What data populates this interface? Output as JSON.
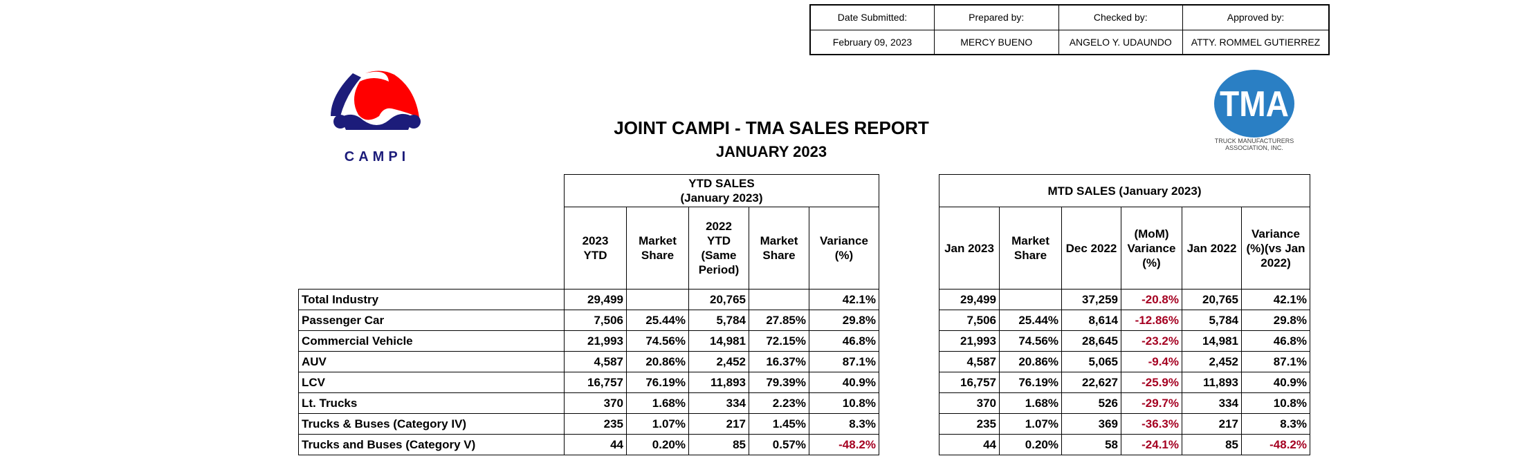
{
  "signoff": {
    "labels": [
      "Date Submitted:",
      "Prepared by:",
      "Checked by:",
      "Approved by:"
    ],
    "values": [
      "February 09, 2023",
      "MERCY BUENO",
      "ANGELO Y. UDAUNDO",
      "ATTY. ROMMEL GUTIERREZ"
    ]
  },
  "logos": {
    "campi": "CAMPI",
    "tma": "TMA",
    "tma_sub_1": "TRUCK MANUFACTURERS",
    "tma_sub_2": "ASSOCIATION, INC."
  },
  "title": "JOINT CAMPI - TMA SALES REPORT",
  "subtitle": "JANUARY 2023",
  "colors": {
    "negative": "#a50021",
    "campi_blue": "#1c1c7a",
    "campi_red": "#ff0000",
    "tma_blue": "#2a7fc4"
  },
  "ytd": {
    "group_title_1": "YTD SALES",
    "group_title_2": "(January 2023)",
    "headers": [
      [
        "2023",
        "YTD"
      ],
      [
        "Market",
        "Share"
      ],
      [
        "2022",
        "YTD",
        "(Same",
        "Period)"
      ],
      [
        "Market",
        "Share"
      ],
      [
        "Variance",
        "(%)"
      ]
    ]
  },
  "mtd": {
    "group_title": "MTD SALES (January 2023)",
    "headers": [
      [
        "Jan 2023"
      ],
      [
        "Market",
        "Share"
      ],
      [
        "Dec 2022"
      ],
      [
        "(MoM)",
        "Variance",
        "(%)"
      ],
      [
        "Jan 2022"
      ],
      [
        "Variance",
        "(%)(vs Jan",
        "2022)"
      ]
    ]
  },
  "rows": [
    {
      "label": "Total Industry",
      "ytd": [
        "29,499",
        "",
        "20,765",
        "",
        "42.1%"
      ],
      "mtd": [
        "29,499",
        "",
        "37,259",
        "-20.8%",
        "20,765",
        "42.1%"
      ]
    },
    {
      "label": "Passenger Car",
      "ytd": [
        "7,506",
        "25.44%",
        "5,784",
        "27.85%",
        "29.8%"
      ],
      "mtd": [
        "7,506",
        "25.44%",
        "8,614",
        "-12.86%",
        "5,784",
        "29.8%"
      ]
    },
    {
      "label": "Commercial Vehicle",
      "ytd": [
        "21,993",
        "74.56%",
        "14,981",
        "72.15%",
        "46.8%"
      ],
      "mtd": [
        "21,993",
        "74.56%",
        "28,645",
        "-23.2%",
        "14,981",
        "46.8%"
      ]
    },
    {
      "label": "AUV",
      "ytd": [
        "4,587",
        "20.86%",
        "2,452",
        "16.37%",
        "87.1%"
      ],
      "mtd": [
        "4,587",
        "20.86%",
        "5,065",
        "-9.4%",
        "2,452",
        "87.1%"
      ]
    },
    {
      "label": "LCV",
      "ytd": [
        "16,757",
        "76.19%",
        "11,893",
        "79.39%",
        "40.9%"
      ],
      "mtd": [
        "16,757",
        "76.19%",
        "22,627",
        "-25.9%",
        "11,893",
        "40.9%"
      ]
    },
    {
      "label": "Lt. Trucks",
      "ytd": [
        "370",
        "1.68%",
        "334",
        "2.23%",
        "10.8%"
      ],
      "mtd": [
        "370",
        "1.68%",
        "526",
        "-29.7%",
        "334",
        "10.8%"
      ]
    },
    {
      "label": "Trucks & Buses (Category IV)",
      "ytd": [
        "235",
        "1.07%",
        "217",
        "1.45%",
        "8.3%"
      ],
      "mtd": [
        "235",
        "1.07%",
        "369",
        "-36.3%",
        "217",
        "8.3%"
      ]
    },
    {
      "label": "Trucks and Buses (Category V)",
      "ytd": [
        "44",
        "0.20%",
        "85",
        "0.57%",
        "-48.2%"
      ],
      "mtd": [
        "44",
        "0.20%",
        "58",
        "-24.1%",
        "85",
        "-48.2%"
      ]
    }
  ]
}
